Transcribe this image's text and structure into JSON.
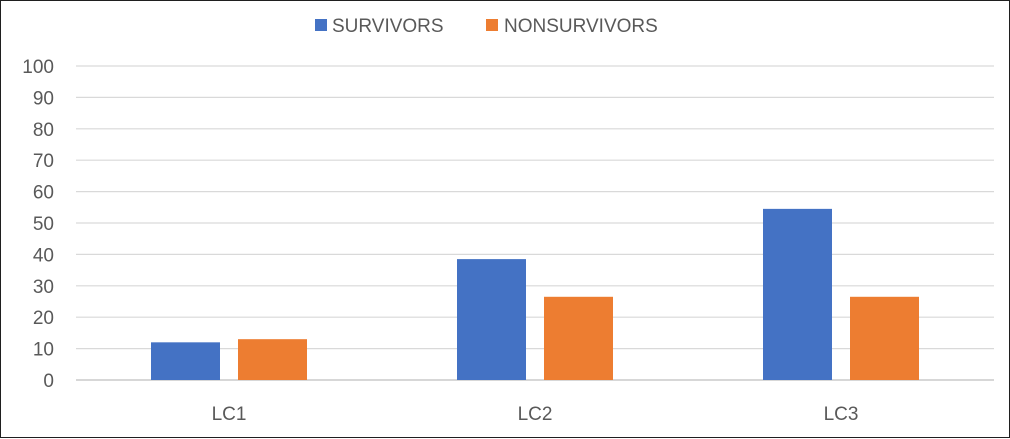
{
  "chart_data": {
    "type": "bar",
    "categories": [
      "LC1",
      "LC2",
      "LC3"
    ],
    "series": [
      {
        "name": "SURVIVORS",
        "values": [
          12,
          38.5,
          54.5
        ],
        "color": "#4472c4"
      },
      {
        "name": "NONSURVIVORS",
        "values": [
          13,
          26.5,
          26.5
        ],
        "color": "#ed7d31"
      }
    ],
    "ylim": [
      0,
      100
    ],
    "yticks": [
      0,
      10,
      20,
      30,
      40,
      50,
      60,
      70,
      80,
      90,
      100
    ],
    "grid": true,
    "legend_position": "top"
  }
}
